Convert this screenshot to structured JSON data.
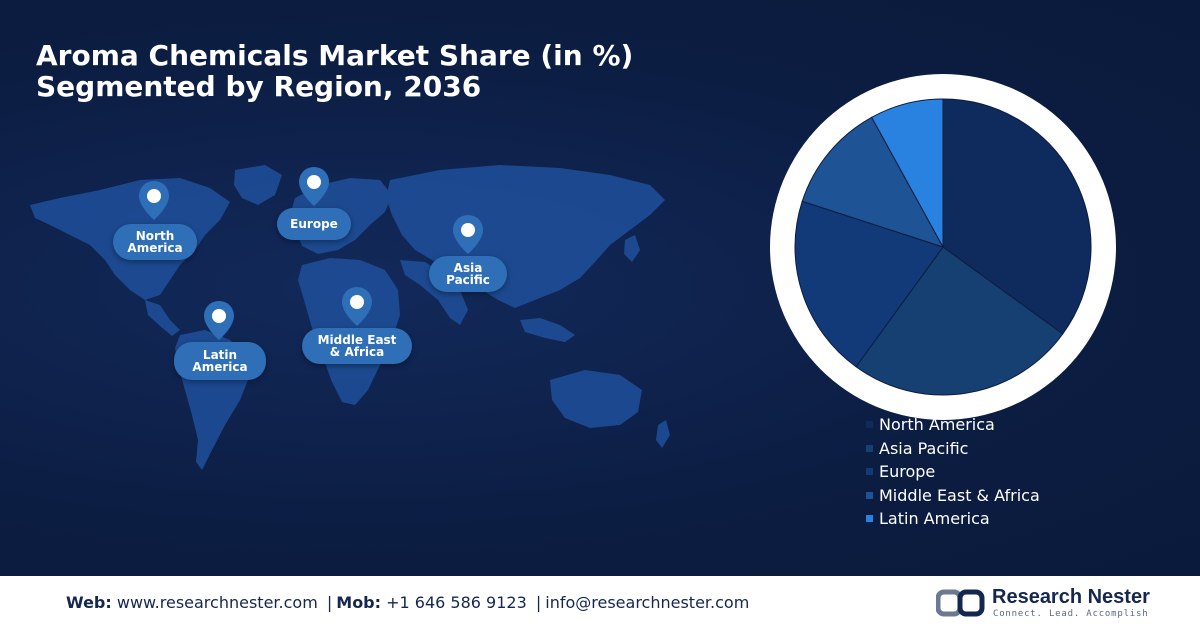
{
  "title": {
    "line1": "Aroma Chemicals Market Share (in %)",
    "line2": "Segmented by Region, 2036"
  },
  "map": {
    "markers": [
      {
        "id": "north-america",
        "label": "North\nAmerica"
      },
      {
        "id": "europe",
        "label": "Europe"
      },
      {
        "id": "asia-pacific",
        "label": "Asia\nPacific"
      },
      {
        "id": "latin-america",
        "label": "Latin\nAmerica"
      },
      {
        "id": "middle-east-africa",
        "label": "Middle East\n& Africa"
      }
    ],
    "icon": "location-pin-icon"
  },
  "chart_data": {
    "type": "pie",
    "title": "Aroma Chemicals Market Share (in %) Segmented by Region, 2036",
    "categories": [
      "North America",
      "Asia Pacific",
      "Europe",
      "Middle East & Africa",
      "Latin America"
    ],
    "values": [
      35,
      25,
      20,
      12,
      8
    ],
    "colors": [
      "#0f2a5c",
      "#163f72",
      "#123a78",
      "#1e5396",
      "#2a82e0"
    ],
    "legend_position": "bottom"
  },
  "footer": {
    "web_label": "Web:",
    "web_value": "www.researchnester.com",
    "mob_label": "Mob:",
    "mob_value": "+1 646 586 9123",
    "email_value": "info@researchnester.com",
    "separator": "|",
    "logo_name": "Research Nester",
    "logo_tagline": "Connect. Lead. Accomplish"
  }
}
